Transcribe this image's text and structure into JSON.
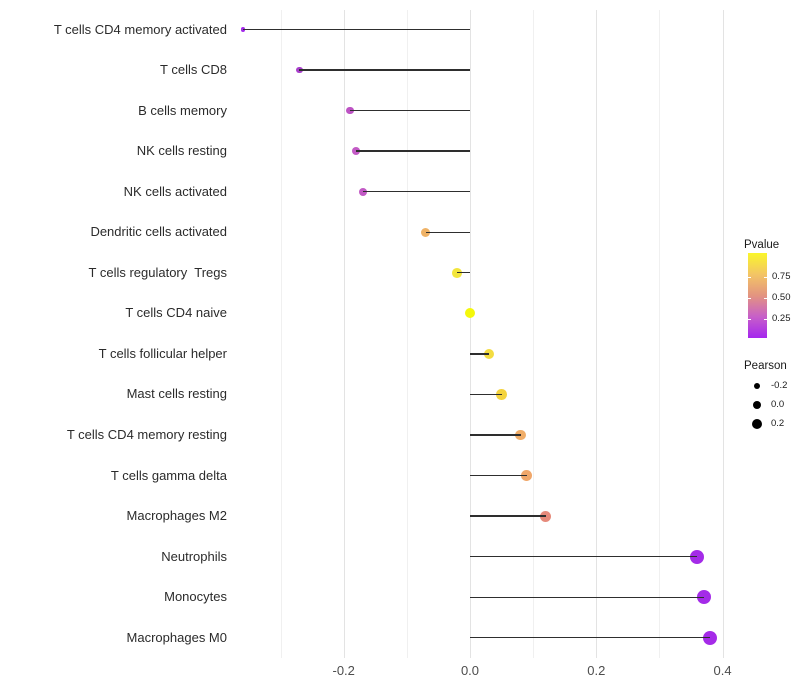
{
  "chart_data": {
    "type": "lollipop",
    "title": "",
    "xlabel": "",
    "ylabel": "",
    "x_axis": {
      "tick_labels": [
        "-0.2",
        "0.0",
        "0.2",
        "0.4"
      ],
      "tick_values": [
        -0.2,
        0.0,
        0.2,
        0.4
      ],
      "minor_tick_values": [
        -0.3,
        -0.1,
        0.1,
        0.3
      ],
      "range": [
        -0.372,
        0.413
      ],
      "grid": true
    },
    "categories": [
      "T cells CD4 memory activated",
      "T cells CD8",
      "B cells memory",
      "NK cells resting",
      "NK cells activated",
      "Dendritic cells activated",
      "T cells regulatory  Tregs",
      "T cells CD4 naive",
      "T cells follicular helper",
      "Mast cells resting",
      "T cells CD4 memory resting",
      "T cells gamma delta",
      "Macrophages M2",
      "Neutrophils",
      "Monocytes",
      "Macrophages M0"
    ],
    "series": [
      {
        "name": "Pearson",
        "values": [
          -0.36,
          -0.27,
          -0.19,
          -0.18,
          -0.17,
          -0.07,
          -0.02,
          0.0,
          0.03,
          0.05,
          0.08,
          0.09,
          0.12,
          0.36,
          0.37,
          0.38
        ]
      }
    ],
    "point_colors": [
      "#a32bea",
      "#a83fcb",
      "#bd53c4",
      "#c35bc6",
      "#c25ac5",
      "#efb266",
      "#f2e53c",
      "#f4f80b",
      "#f3dc41",
      "#f4d33e",
      "#f0ad68",
      "#f0a76a",
      "#e68a7b",
      "#a42be8",
      "#a42be8",
      "#a52be8"
    ],
    "point_radii": [
      2.1,
      3.3,
      3.9,
      4.0,
      4.1,
      4.7,
      4.9,
      5.0,
      5.1,
      5.2,
      5.35,
      5.4,
      5.6,
      7.0,
      7.1,
      7.2
    ],
    "legend_position": "right"
  },
  "legend": {
    "pvalue": {
      "title": "Pvalue",
      "tick_labels": [
        "0.75",
        "0.50",
        "0.25"
      ],
      "gradient_stops": [
        "#a526ee",
        "#c75fc9",
        "#e39480",
        "#f3c565",
        "#faf62b"
      ]
    },
    "pearson": {
      "title": "Pearson",
      "dot_color": "#000000",
      "items": [
        {
          "label": "-0.2",
          "radius": 3.3
        },
        {
          "label": "0.0",
          "radius": 4.3
        },
        {
          "label": "0.2",
          "radius": 5.0
        }
      ]
    }
  },
  "colors": {
    "background": "#ffffff",
    "grid_major": "#e3e3e3",
    "grid_minor": "#f0f0f0",
    "stem": "#2e2e2e",
    "axis_text": "#4d4d4d",
    "category_text": "#2b2b2b"
  }
}
